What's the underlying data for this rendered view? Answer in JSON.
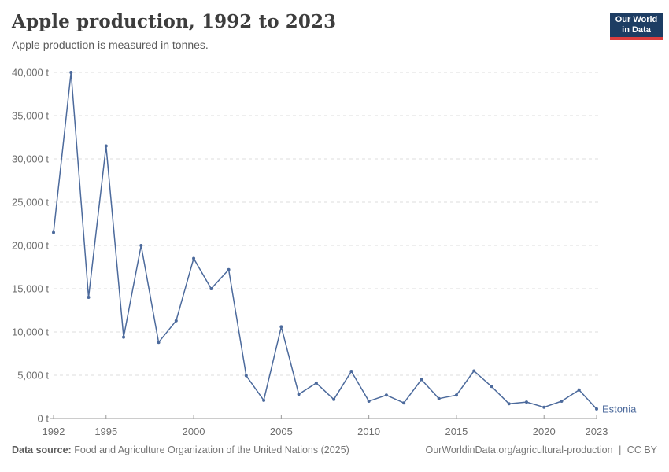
{
  "header": {
    "title": "Apple production, 1992 to 2023",
    "subtitle": "Apple production is measured in tonnes.",
    "logo": {
      "line1": "Our World",
      "line2": "in Data"
    }
  },
  "chart_data": {
    "type": "line",
    "title": "Apple production, 1992 to 2023",
    "subtitle": "Apple production is measured in tonnes.",
    "xlabel": "",
    "ylabel": "tonnes",
    "unit_suffix": " t",
    "x": [
      1992,
      1993,
      1994,
      1995,
      1996,
      1997,
      1998,
      1999,
      2000,
      2001,
      2002,
      2003,
      2004,
      2005,
      2006,
      2007,
      2008,
      2009,
      2010,
      2011,
      2012,
      2013,
      2014,
      2015,
      2016,
      2017,
      2018,
      2019,
      2020,
      2021,
      2022,
      2023
    ],
    "series": [
      {
        "name": "Estonia",
        "color": "#4c6a9c",
        "values": [
          21500,
          40000,
          14000,
          31500,
          9400,
          20000,
          8800,
          11300,
          18500,
          15000,
          17200,
          4950,
          2100,
          10600,
          2800,
          4100,
          2200,
          5450,
          2000,
          2700,
          1800,
          4500,
          2300,
          2700,
          5500,
          3700,
          1700,
          1900,
          1300,
          2000,
          3300,
          1100
        ]
      }
    ],
    "xlim": [
      1992,
      2023
    ],
    "ylim": [
      0,
      40000
    ],
    "x_ticks": [
      1992,
      1995,
      2000,
      2005,
      2010,
      2015,
      2020,
      2023
    ],
    "y_ticks": [
      0,
      5000,
      10000,
      15000,
      20000,
      25000,
      30000,
      35000,
      40000
    ],
    "grid": "horizontal-dashed",
    "legend_position": "end-of-line-label",
    "colors": {
      "line": "#4c6a9c",
      "grid": "#dddddd",
      "axis": "#999999",
      "tick_text": "#6e6e6e"
    }
  },
  "footer": {
    "source_label": "Data source:",
    "source_text": "Food and Agriculture Organization of the United Nations (2025)",
    "url": "OurWorldinData.org/agricultural-production",
    "separator": "|",
    "license": "CC BY"
  }
}
